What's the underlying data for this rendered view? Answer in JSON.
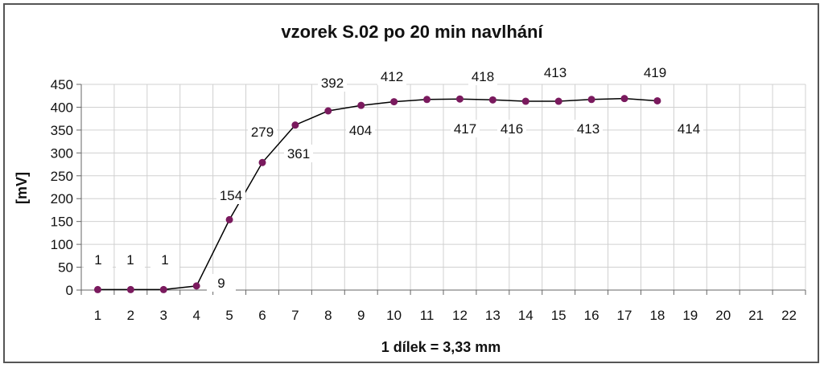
{
  "chart_data": {
    "type": "line",
    "title": "vzorek S.02 po 20 min navlhání",
    "xlabel": "1 dílek = 3,33 mm",
    "ylabel": "[mV]",
    "x_ticks": [
      1,
      2,
      3,
      4,
      5,
      6,
      7,
      8,
      9,
      10,
      11,
      12,
      13,
      14,
      15,
      16,
      17,
      18,
      19,
      20,
      21,
      22
    ],
    "y_ticks": [
      0,
      50,
      100,
      150,
      200,
      250,
      300,
      350,
      400,
      450
    ],
    "xlim": [
      0.5,
      22.5
    ],
    "ylim": [
      0,
      450
    ],
    "grid": true,
    "colors": {
      "line": "#000000",
      "marker": "#7a1a5e",
      "grid": "#d0d0d0"
    },
    "series": [
      {
        "x": [
          1,
          2,
          3,
          4,
          5,
          6,
          7,
          8,
          9,
          10,
          11,
          12,
          13,
          14,
          15,
          16,
          17,
          18
        ],
        "y": [
          1,
          1,
          1,
          9,
          154,
          279,
          361,
          392,
          404,
          412,
          417,
          418,
          416,
          413,
          413,
          417,
          419,
          414
        ],
        "data_labels": [
          "1",
          "1",
          "1",
          "9",
          "154",
          "279",
          "361",
          "392",
          "404",
          "412",
          "417",
          "418",
          "416",
          "413",
          "413",
          "417",
          "419",
          "414"
        ]
      }
    ]
  }
}
